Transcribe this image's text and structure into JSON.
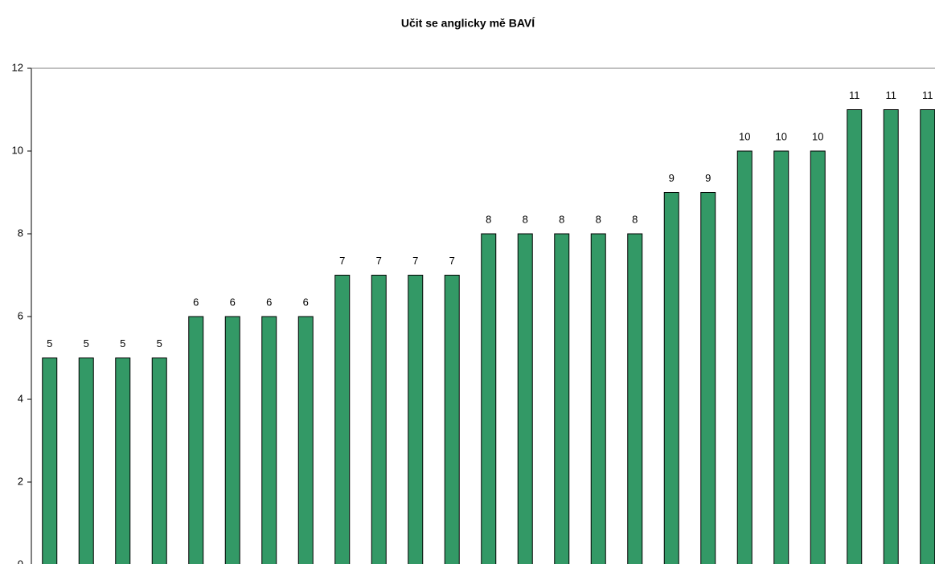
{
  "chart_data": {
    "type": "bar",
    "title": "Učit se anglicky mě BAVÍ",
    "categories": [
      null,
      null,
      null,
      null,
      null,
      null,
      null,
      null,
      null,
      null,
      null,
      null,
      null,
      null,
      null,
      null,
      null,
      null,
      null,
      null,
      null,
      null,
      null,
      null,
      null
    ],
    "values": [
      5,
      5,
      5,
      5,
      6,
      6,
      6,
      6,
      7,
      7,
      7,
      7,
      8,
      8,
      8,
      8,
      8,
      9,
      9,
      10,
      10,
      10,
      11,
      11,
      11
    ],
    "color": "#339966",
    "ylim": [
      0,
      12
    ],
    "yticks": [
      0,
      2,
      4,
      6,
      8,
      10,
      12
    ],
    "grid": false,
    "data_labels": true
  }
}
